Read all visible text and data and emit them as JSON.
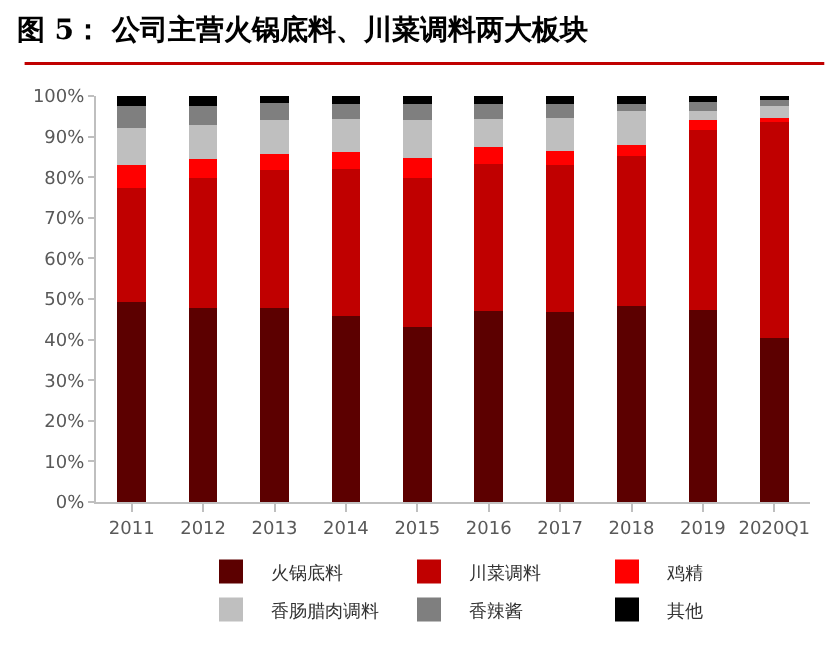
{
  "chart_data": {
    "type": "bar",
    "stacked": true,
    "title": "图 5： 公司主营火锅底料、川菜调料两大板块",
    "categories": [
      "2011",
      "2012",
      "2013",
      "2014",
      "2015",
      "2016",
      "2017",
      "2018",
      "2019",
      "2020Q1"
    ],
    "series": [
      {
        "name": "火锅底料",
        "color": "#5c0000",
        "values": [
          49.2,
          47.9,
          47.9,
          45.7,
          43.2,
          47.1,
          46.7,
          48.4,
          47.3,
          40.3
        ]
      },
      {
        "name": "川菜调料",
        "color": "#c00000",
        "values": [
          28.2,
          31.9,
          33.8,
          36.2,
          36.6,
          36.2,
          36.4,
          36.8,
          44.3,
          53.7
        ]
      },
      {
        "name": "鸡精",
        "color": "#ff0000",
        "values": [
          5.7,
          4.6,
          4.1,
          4.3,
          5.0,
          4.2,
          3.3,
          2.7,
          2.4,
          0.6
        ]
      },
      {
        "name": "香肠腊肉调料",
        "color": "#bfbfbf",
        "values": [
          9.1,
          8.4,
          8.2,
          8.2,
          9.2,
          6.9,
          8.3,
          8.4,
          2.3,
          2.9
        ]
      },
      {
        "name": "香辣酱",
        "color": "#7f7f7f",
        "values": [
          5.3,
          4.7,
          4.4,
          3.7,
          4.1,
          3.7,
          3.4,
          1.8,
          2.3,
          1.5
        ]
      },
      {
        "name": "其他",
        "color": "#000000",
        "values": [
          2.5,
          2.5,
          1.6,
          1.9,
          1.9,
          1.9,
          1.9,
          1.9,
          1.4,
          1.0
        ]
      }
    ],
    "ylim": [
      0,
      100
    ],
    "yticks": [
      {
        "value": 0,
        "label": "0%"
      },
      {
        "value": 10,
        "label": "10%"
      },
      {
        "value": 20,
        "label": "20%"
      },
      {
        "value": 30,
        "label": "30%"
      },
      {
        "value": 40,
        "label": "40%"
      },
      {
        "value": 50,
        "label": "50%"
      },
      {
        "value": 60,
        "label": "60%"
      },
      {
        "value": 70,
        "label": "70%"
      },
      {
        "value": 80,
        "label": "80%"
      },
      {
        "value": 90,
        "label": "90%"
      },
      {
        "value": 100,
        "label": "100%"
      }
    ],
    "grid": false,
    "legend": "bottom"
  }
}
